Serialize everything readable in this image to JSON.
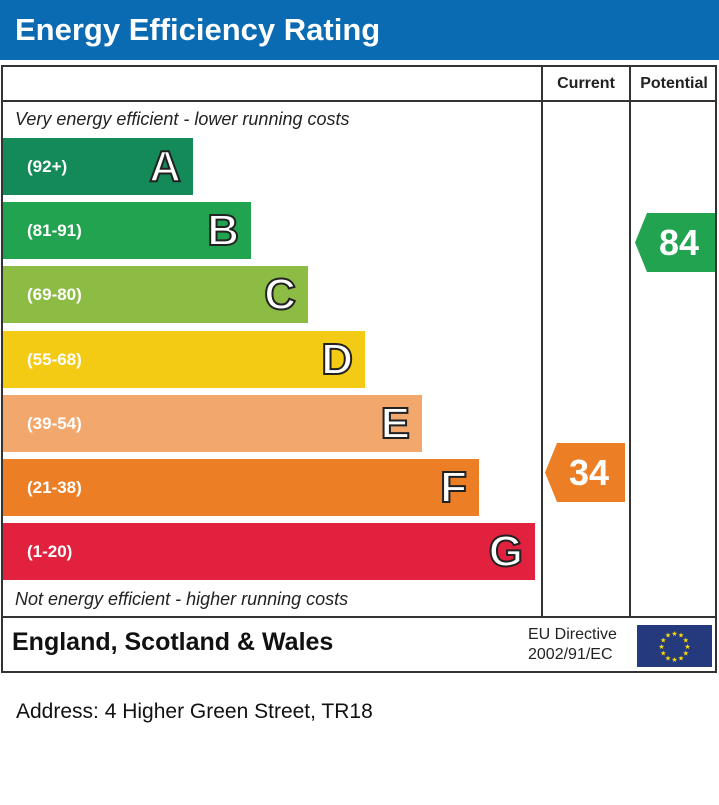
{
  "title": "Energy Efficiency Rating",
  "chart_data": {
    "type": "bar",
    "columns": [
      "Current",
      "Potential"
    ],
    "top_note": "Very energy efficient - lower running costs",
    "bottom_note": "Not energy efficient - higher running costs",
    "bands": [
      {
        "letter": "A",
        "range": "(92+)",
        "color": "#138a57"
      },
      {
        "letter": "B",
        "range": "(81-91)",
        "color": "#22a350"
      },
      {
        "letter": "C",
        "range": "(69-80)",
        "color": "#8cbc43"
      },
      {
        "letter": "D",
        "range": "(55-68)",
        "color": "#f4cb14"
      },
      {
        "letter": "E",
        "range": "(39-54)",
        "color": "#f2a86c"
      },
      {
        "letter": "F",
        "range": "(21-38)",
        "color": "#ec7f26"
      },
      {
        "letter": "G",
        "range": "(1-20)",
        "color": "#e1213e"
      }
    ],
    "current": {
      "value": "34",
      "band": "F",
      "color": "#ec7f26"
    },
    "potential": {
      "value": "84",
      "band": "B",
      "color": "#22a350"
    }
  },
  "footer": {
    "region": "England, Scotland & Wales",
    "directive_line1": "EU Directive",
    "directive_line2": "2002/91/EC",
    "flag": "eu-flag-icon"
  },
  "address": "Address: 4 Higher Green Street, TR18"
}
